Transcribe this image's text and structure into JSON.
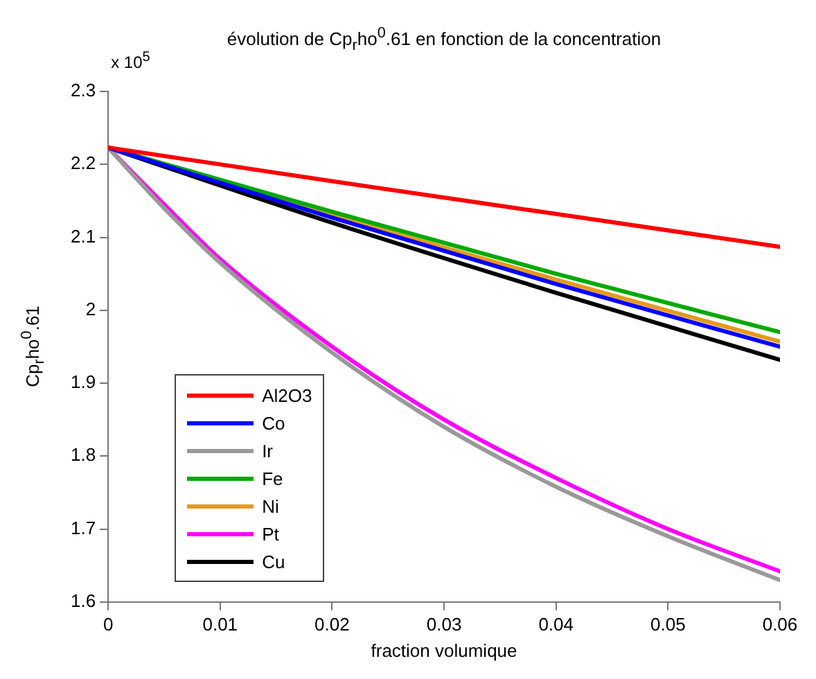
{
  "chart_data": {
    "type": "line",
    "title": "évolution de Cp$_{r}$ho$^{0}$.61 en fonction de la concentration",
    "xlabel": "fraction volumique",
    "ylabel": "Cp$_{r}$ho$^{0}$.61",
    "annotations": [
      "x 10$^{5}$"
    ],
    "xlim": [
      0,
      0.06
    ],
    "xticks": [
      0,
      0.01,
      0.02,
      0.03,
      0.04,
      0.05,
      0.06
    ],
    "ylim": [
      1.6,
      2.3
    ],
    "yticks": [
      1.6,
      1.7,
      1.8,
      1.9,
      2,
      2.1,
      2.2,
      2.3
    ],
    "grid": false,
    "legend": "bottom left",
    "marker": "none",
    "line_style": "solid",
    "series": [
      {
        "name": "Al2O3",
        "color": "#ff0000",
        "x": [
          0,
          0.02,
          0.04,
          0.06
        ],
        "values": [
          2.223,
          2.177,
          2.132,
          2.087
        ]
      },
      {
        "name": "Co",
        "color": "#0000ff",
        "x": [
          0,
          0.02,
          0.04,
          0.06
        ],
        "values": [
          2.223,
          2.127,
          2.036,
          1.95
        ]
      },
      {
        "name": "Ir",
        "color": "#999999",
        "x": [
          0,
          0.005,
          0.01,
          0.02,
          0.03,
          0.04,
          0.05,
          0.06
        ],
        "values": [
          2.223,
          2.14,
          2.065,
          1.942,
          1.84,
          1.758,
          1.69,
          1.63
        ]
      },
      {
        "name": "Fe",
        "color": "#00aa00",
        "x": [
          0,
          0.02,
          0.04,
          0.06
        ],
        "values": [
          2.223,
          2.135,
          2.05,
          1.97
        ]
      },
      {
        "name": "Ni",
        "color": "#e69a1a",
        "x": [
          0,
          0.02,
          0.04,
          0.06
        ],
        "values": [
          2.223,
          2.13,
          2.042,
          1.957
        ]
      },
      {
        "name": "Pt",
        "color": "#ff00ff",
        "x": [
          0,
          0.005,
          0.01,
          0.02,
          0.03,
          0.04,
          0.05,
          0.06
        ],
        "values": [
          2.223,
          2.145,
          2.07,
          1.95,
          1.85,
          1.77,
          1.7,
          1.642
        ]
      },
      {
        "name": "Cu",
        "color": "#000000",
        "x": [
          0,
          0.02,
          0.04,
          0.06
        ],
        "values": [
          2.223,
          2.12,
          2.024,
          1.932
        ]
      }
    ]
  }
}
